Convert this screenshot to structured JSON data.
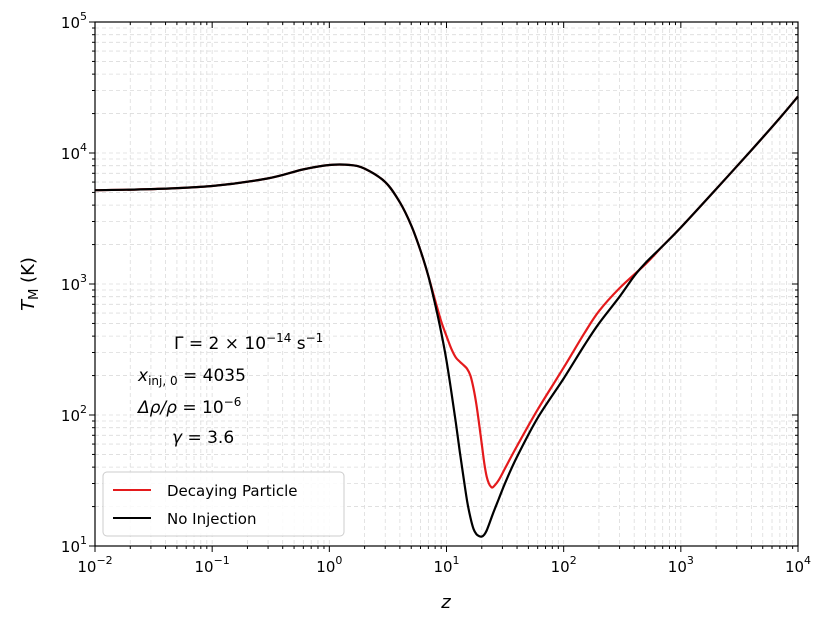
{
  "chart_data": {
    "type": "line",
    "x_scale": "log",
    "y_scale": "log",
    "xlim": [
      0.01,
      10000
    ],
    "ylim": [
      10,
      100000
    ],
    "xlabel": "z",
    "ylabel": "T_M (K)",
    "grid": "minor, dashed light gray",
    "x_ticks": [
      {
        "base": "10",
        "exp": "−2",
        "value": 0.01
      },
      {
        "base": "10",
        "exp": "−1",
        "value": 0.1
      },
      {
        "base": "10",
        "exp": "0",
        "value": 1
      },
      {
        "base": "10",
        "exp": "1",
        "value": 10
      },
      {
        "base": "10",
        "exp": "2",
        "value": 100
      },
      {
        "base": "10",
        "exp": "3",
        "value": 1000
      },
      {
        "base": "10",
        "exp": "4",
        "value": 10000
      }
    ],
    "y_ticks": [
      {
        "base": "10",
        "exp": "1",
        "value": 10
      },
      {
        "base": "10",
        "exp": "2",
        "value": 100
      },
      {
        "base": "10",
        "exp": "3",
        "value": 1000
      },
      {
        "base": "10",
        "exp": "4",
        "value": 10000
      },
      {
        "base": "10",
        "exp": "5",
        "value": 100000
      }
    ],
    "annotations": [
      "Γ = 2 × 10^−14 s^−1",
      "x_inj,0 = 4035",
      "Δρ/ρ = 10^−6",
      "γ = 3.6"
    ],
    "legend": {
      "placement": "lower-left",
      "entries": [
        "Decaying Particle",
        "No Injection"
      ]
    },
    "series": [
      {
        "name": "Decaying Particle",
        "color": "#e41a1c",
        "x": [
          0.01,
          0.03,
          0.1,
          0.3,
          0.6,
          1.0,
          1.5,
          2.0,
          3.0,
          4.0,
          5.0,
          6.0,
          7.0,
          8.0,
          9.0,
          10.0,
          11.0,
          12.0,
          13.0,
          14.0,
          15.0,
          16.0,
          17.0,
          18.0,
          19.0,
          20.0,
          21.0,
          22.0,
          23.0,
          24.0,
          25.0,
          28.0,
          32.0,
          40.0,
          60.0,
          100.0,
          150.0,
          200.0,
          300.0,
          500.0,
          700.0,
          1000.0,
          2000.0,
          4000.0,
          7000.0,
          10000.0
        ],
        "y": [
          5200,
          5300,
          5600,
          6400,
          7500,
          8100,
          8100,
          7600,
          6000,
          4200,
          2800,
          1800,
          1150,
          750,
          520,
          400,
          320,
          275,
          255,
          240,
          225,
          200,
          160,
          120,
          85,
          60,
          43,
          34,
          30,
          28.3,
          28.2,
          32,
          40,
          58,
          110,
          230,
          420,
          620,
          930,
          1420,
          1950,
          2700,
          5300,
          10500,
          18500,
          27000
        ]
      },
      {
        "name": "No Injection",
        "color": "#000000",
        "x": [
          0.01,
          0.03,
          0.1,
          0.3,
          0.6,
          1.0,
          1.5,
          2.0,
          3.0,
          4.0,
          5.0,
          6.0,
          7.0,
          8.0,
          9.0,
          10.0,
          11.0,
          12.0,
          13.0,
          14.0,
          15.0,
          16.0,
          17.0,
          18.0,
          19.0,
          20.0,
          21.0,
          22.0,
          23.0,
          25.0,
          28.0,
          32.0,
          40.0,
          60.0,
          100.0,
          150.0,
          200.0,
          300.0,
          400.0,
          500.0,
          700.0,
          1000.0,
          2000.0,
          4000.0,
          7000.0,
          10000.0
        ],
        "y": [
          5200,
          5300,
          5600,
          6400,
          7500,
          8100,
          8100,
          7600,
          6000,
          4200,
          2800,
          1800,
          1150,
          700,
          430,
          260,
          150,
          88,
          52,
          33,
          22,
          16.5,
          13.5,
          12.3,
          11.9,
          11.8,
          12.2,
          13.1,
          14.5,
          17.8,
          23,
          31,
          48,
          95,
          190,
          340,
          500,
          800,
          1150,
          1450,
          1950,
          2700,
          5300,
          10500,
          18500,
          27000
        ]
      }
    ]
  }
}
